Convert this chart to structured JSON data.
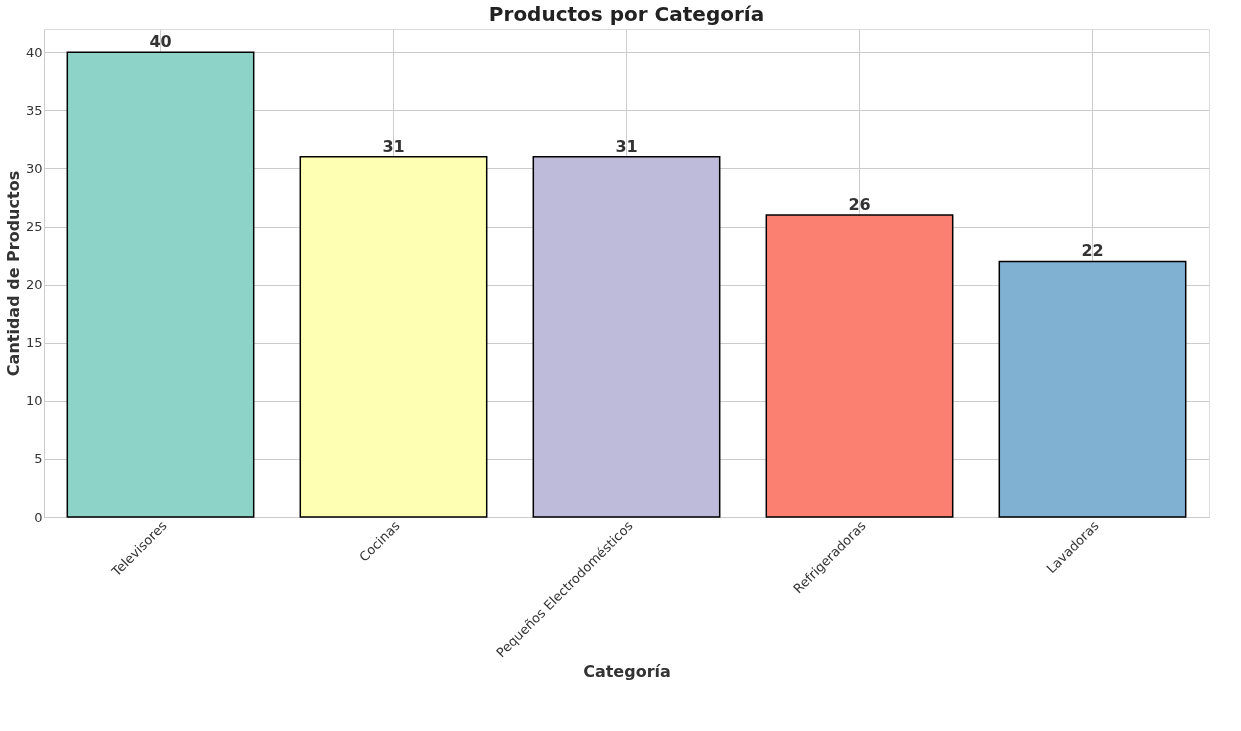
{
  "chart_data": {
    "type": "bar",
    "title": "Productos por Categoría",
    "xlabel": "Categoría",
    "ylabel": "Cantidad de Productos",
    "categories": [
      "Televisores",
      "Cocinas",
      "Pequeños Electrodomésticos",
      "Refrigeradoras",
      "Lavadoras"
    ],
    "values": [
      40,
      31,
      31,
      26,
      22
    ],
    "colors": [
      "#8dd3c7",
      "#ffffb3",
      "#bebada",
      "#fb8072",
      "#80b1d3"
    ],
    "ylim": [
      0,
      42
    ],
    "yticks": [
      0,
      5,
      10,
      15,
      20,
      25,
      30,
      35,
      40
    ],
    "grid": true,
    "data_labels": true
  }
}
